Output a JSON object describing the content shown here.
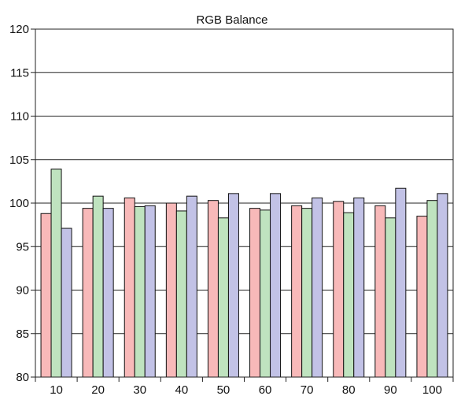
{
  "chart_data": {
    "type": "bar",
    "title": "RGB Balance",
    "xlabel": "",
    "ylabel": "",
    "categories": [
      "10",
      "20",
      "30",
      "40",
      "50",
      "60",
      "70",
      "80",
      "90",
      "100"
    ],
    "series": [
      {
        "values": [
          98.8,
          99.4,
          100.6,
          100.0,
          100.3,
          99.4,
          99.7,
          100.2,
          99.7,
          98.5
        ],
        "color": "#f8b9b9"
      },
      {
        "values": [
          103.9,
          100.8,
          99.6,
          99.1,
          98.3,
          99.2,
          99.4,
          98.9,
          98.3,
          100.3
        ],
        "color": "#bfe3bf"
      },
      {
        "values": [
          97.1,
          99.4,
          99.7,
          100.8,
          101.1,
          101.1,
          100.6,
          100.6,
          101.7,
          101.1
        ],
        "color": "#c2c2e6"
      }
    ],
    "ylim": [
      80,
      120
    ],
    "yticks": [
      80,
      85,
      90,
      95,
      100,
      105,
      110,
      115,
      120
    ],
    "grid": true,
    "legend": "none",
    "colors": {
      "gridline": "#222222",
      "axis": "#222222",
      "bar_outline": "#111111"
    }
  }
}
